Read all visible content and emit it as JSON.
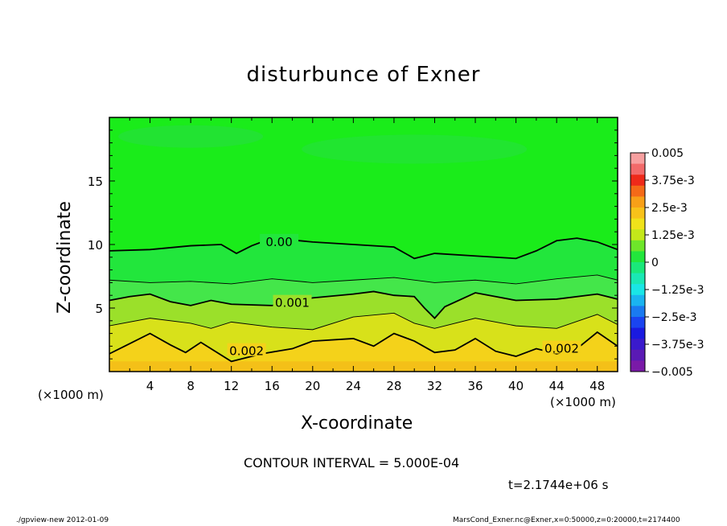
{
  "chart_data": {
    "type": "heatmap",
    "title": "disturbunce of Exner",
    "xlabel": "X-coordinate",
    "ylabel": "Z-coordinate",
    "x_unit": "(×1000 m)",
    "x_ticks": [
      4,
      8,
      12,
      16,
      20,
      24,
      28,
      32,
      36,
      40,
      44,
      48
    ],
    "y_ticks": [
      5,
      10,
      15
    ],
    "xlim": [
      0,
      50
    ],
    "ylim": [
      0,
      20
    ],
    "colorbar": {
      "labels": [
        "0.005",
        "3.75e-3",
        "2.5e-3",
        "1.25e-3",
        "0",
        "−1.25e-3",
        "−2.5e-3",
        "−3.75e-3",
        "−0.005"
      ],
      "range": [
        -0.005,
        0.005
      ]
    },
    "contour_labels": [
      "0.00",
      "0.001",
      "0.002",
      "0.002"
    ],
    "contour_interval_note": "CONTOUR INTERVAL = 5.000E-04",
    "time_label": "t=2.1744e+06 s",
    "contours": [
      {
        "value": 0.0,
        "x": [
          0,
          4,
          8,
          11,
          12.5,
          14,
          16,
          20,
          24,
          28,
          30,
          32,
          36,
          40,
          42,
          44,
          46,
          48,
          50
        ],
        "z": [
          9.5,
          9.6,
          9.9,
          10.0,
          9.3,
          9.9,
          10.5,
          10.2,
          10.0,
          9.8,
          8.9,
          9.3,
          9.1,
          8.9,
          9.5,
          10.3,
          10.5,
          10.2,
          9.6
        ]
      },
      {
        "value": 0.0005,
        "x": [
          0,
          4,
          8,
          12,
          16,
          20,
          24,
          28,
          32,
          36,
          40,
          44,
          48,
          50
        ],
        "z": [
          7.2,
          7.0,
          7.1,
          6.9,
          7.3,
          7.0,
          7.2,
          7.4,
          7.0,
          7.2,
          6.9,
          7.3,
          7.6,
          7.2
        ]
      },
      {
        "value": 0.001,
        "x": [
          0,
          2,
          4,
          6,
          8,
          10,
          12,
          16,
          20,
          24,
          26,
          28,
          30,
          31,
          32,
          33,
          36,
          40,
          44,
          48,
          50
        ],
        "z": [
          5.6,
          5.9,
          6.1,
          5.5,
          5.2,
          5.6,
          5.3,
          5.2,
          5.8,
          6.1,
          6.3,
          6.0,
          5.9,
          5.0,
          4.2,
          5.1,
          6.2,
          5.6,
          5.7,
          6.1,
          5.7
        ]
      },
      {
        "value": 0.0015,
        "x": [
          0,
          4,
          8,
          10,
          12,
          16,
          20,
          24,
          28,
          30,
          32,
          36,
          40,
          44,
          48,
          50
        ],
        "z": [
          3.6,
          4.2,
          3.8,
          3.4,
          3.9,
          3.5,
          3.3,
          4.3,
          4.6,
          3.8,
          3.4,
          4.2,
          3.6,
          3.4,
          4.5,
          3.7
        ]
      },
      {
        "value": 0.002,
        "x": [
          0,
          1.5,
          4,
          6,
          7.5,
          9,
          12,
          15,
          18,
          20,
          24,
          26,
          28,
          30,
          32,
          34,
          36,
          38,
          40,
          42,
          44,
          46,
          48,
          50
        ],
        "z": [
          1.4,
          2.0,
          3.0,
          2.1,
          1.5,
          2.3,
          0.8,
          1.4,
          1.8,
          2.4,
          2.6,
          2.0,
          3.0,
          2.4,
          1.5,
          1.7,
          2.6,
          1.6,
          1.2,
          1.8,
          1.4,
          1.8,
          3.1,
          2.0
        ]
      }
    ],
    "colors": {
      "band_top": "#1aec1a",
      "band_0": "#22e63c",
      "band_pos1": "#44e64a",
      "band_pos2": "#9be02a",
      "band_pos3": "#d8e11a",
      "band_pos4": "#f4d21a",
      "band_pos5": "#f4b418"
    }
  },
  "footer": {
    "left": "./gpview-new   2012-01-09",
    "right": "MarsCond_Exner.nc@Exner,x=0:50000,z=0:20000,t=2174400"
  }
}
